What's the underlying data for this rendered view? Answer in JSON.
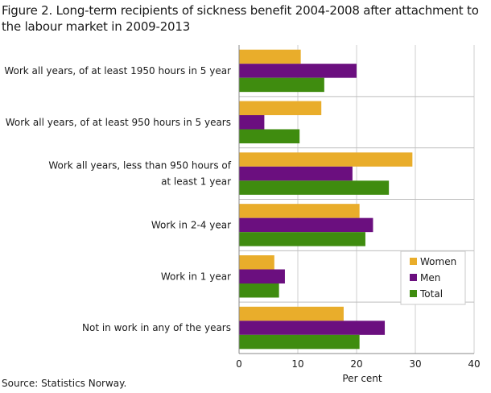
{
  "title": "Figure 2.  Long-term recipients of sickness benefit 2004-2008 after attachment to the labour market  in 2009-2013",
  "source": "Source: Statistics Norway.",
  "chart_data": {
    "type": "bar",
    "orientation": "horizontal",
    "categories": [
      [
        "Work all years, of at least 1950 hours in 5 year"
      ],
      [
        "Work all years, of at least 950 hours in 5 years"
      ],
      [
        "Work all years, less than 950 hours of",
        "at least 1 year"
      ],
      [
        "Work in 2-4 year"
      ],
      [
        "Work in 1 year"
      ],
      [
        "Not in work in any of the years"
      ]
    ],
    "series": [
      {
        "name": "Women",
        "color": "#e9ad2b",
        "values": [
          10.5,
          14,
          29.5,
          20.5,
          6,
          17.8
        ]
      },
      {
        "name": "Men",
        "color": "#6b0f7f",
        "values": [
          20,
          4.3,
          19.3,
          22.8,
          7.8,
          24.8
        ]
      },
      {
        "name": "Total",
        "color": "#3f8c0f",
        "values": [
          14.5,
          10.3,
          25.5,
          21.5,
          6.8,
          20.5
        ]
      }
    ],
    "xlabel": "Per cent",
    "xlim": [
      0,
      40
    ],
    "xticks": [
      0,
      10,
      20,
      30,
      40
    ],
    "grid": true,
    "legend": "right"
  }
}
